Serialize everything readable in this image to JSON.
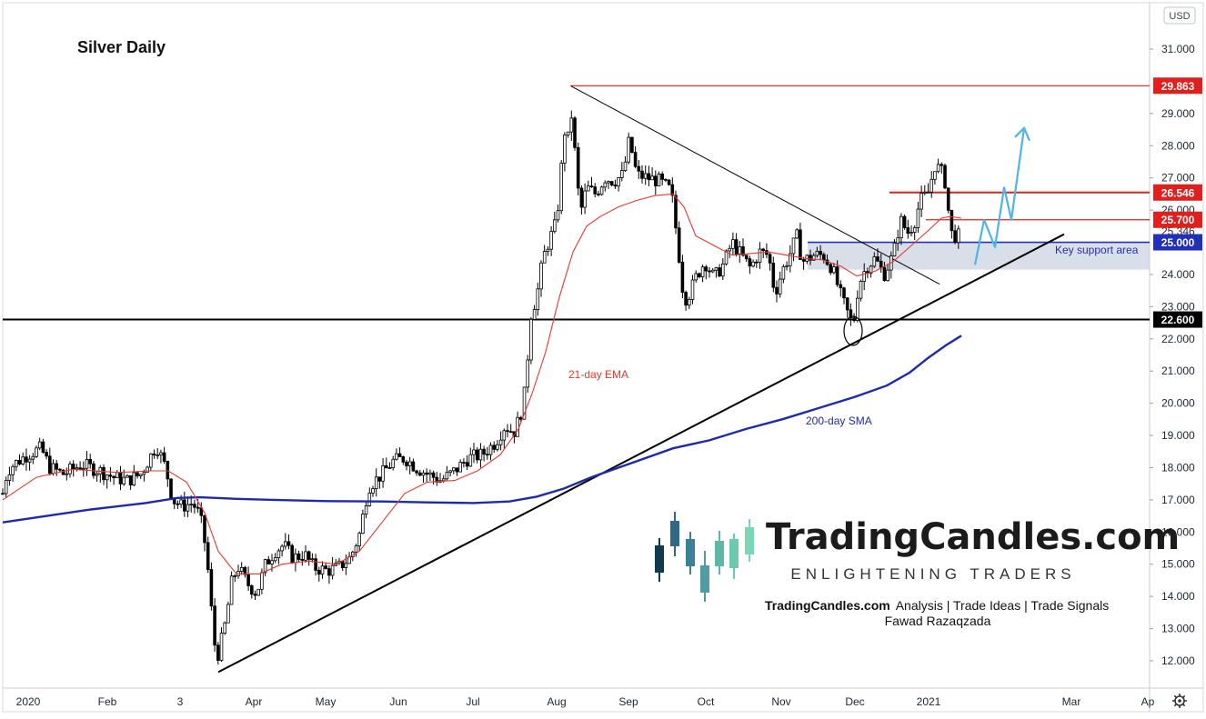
{
  "chart_data": {
    "type": "candlestick",
    "title": "Silver Daily",
    "currency": "USD",
    "y_ticks": [
      "31.000",
      "29.000",
      "28.000",
      "27.000",
      "26.000",
      "24.000",
      "23.000",
      "22.000",
      "21.000",
      "20.000",
      "19.000",
      "18.000",
      "17.000",
      "16.000",
      "15.000",
      "14.000",
      "13.000",
      "12.000"
    ],
    "ylim": [
      11.2,
      31.6
    ],
    "x_ticks": [
      {
        "label": "2020",
        "x": 31
      },
      {
        "label": "Feb",
        "x": 118
      },
      {
        "label": "3",
        "x": 198
      },
      {
        "label": "Apr",
        "x": 279
      },
      {
        "label": "May",
        "x": 358
      },
      {
        "label": "Jun",
        "x": 438
      },
      {
        "label": "Jul",
        "x": 520
      },
      {
        "label": "Aug",
        "x": 612
      },
      {
        "label": "Sep",
        "x": 691
      },
      {
        "label": "Oct",
        "x": 776
      },
      {
        "label": "Nov",
        "x": 859
      },
      {
        "label": "Dec",
        "x": 940
      },
      {
        "label": "2021",
        "x": 1021
      },
      {
        "label": "Mar",
        "x": 1178
      },
      {
        "label": "Ap",
        "x": 1262
      }
    ],
    "price_path": [
      [
        3,
        17.2
      ],
      [
        8,
        17.9
      ],
      [
        15,
        18.1
      ],
      [
        30,
        18.4
      ],
      [
        45,
        18.6
      ],
      [
        55,
        18.0
      ],
      [
        70,
        17.8
      ],
      [
        90,
        18.1
      ],
      [
        110,
        17.9
      ],
      [
        125,
        17.7
      ],
      [
        140,
        17.6
      ],
      [
        155,
        17.8
      ],
      [
        172,
        18.7
      ],
      [
        182,
        18.0
      ],
      [
        190,
        17.0
      ],
      [
        200,
        16.8
      ],
      [
        212,
        16.9
      ],
      [
        220,
        16.5
      ],
      [
        225,
        15.7
      ],
      [
        230,
        14.5
      ],
      [
        235,
        12.6
      ],
      [
        240,
        12.2
      ],
      [
        248,
        13.2
      ],
      [
        255,
        14.5
      ],
      [
        262,
        14.9
      ],
      [
        272,
        14.4
      ],
      [
        282,
        14.1
      ],
      [
        292,
        15.0
      ],
      [
        302,
        15.4
      ],
      [
        312,
        15.6
      ],
      [
        322,
        15.2
      ],
      [
        335,
        15.3
      ],
      [
        345,
        14.9
      ],
      [
        360,
        14.8
      ],
      [
        372,
        14.9
      ],
      [
        385,
        15.2
      ],
      [
        395,
        15.9
      ],
      [
        405,
        17.4
      ],
      [
        420,
        17.8
      ],
      [
        432,
        18.2
      ],
      [
        445,
        18.3
      ],
      [
        458,
        18.0
      ],
      [
        470,
        17.8
      ],
      [
        485,
        17.6
      ],
      [
        500,
        17.9
      ],
      [
        515,
        18.3
      ],
      [
        530,
        18.4
      ],
      [
        545,
        18.8
      ],
      [
        555,
        19.3
      ],
      [
        565,
        19.1
      ],
      [
        572,
        19.6
      ],
      [
        578,
        20.5
      ],
      [
        583,
        22.7
      ],
      [
        590,
        23.3
      ],
      [
        597,
        24.5
      ],
      [
        603,
        25.0
      ],
      [
        610,
        25.5
      ],
      [
        615,
        26.4
      ],
      [
        620,
        28.5
      ],
      [
        625,
        28.2
      ],
      [
        629,
        29.1
      ],
      [
        633,
        27.4
      ],
      [
        638,
        25.9
      ],
      [
        645,
        26.7
      ],
      [
        655,
        26.5
      ],
      [
        665,
        27.0
      ],
      [
        675,
        26.9
      ],
      [
        685,
        27.1
      ],
      [
        692,
        28.2
      ],
      [
        700,
        27.1
      ],
      [
        712,
        27.0
      ],
      [
        725,
        26.9
      ],
      [
        738,
        26.6
      ],
      [
        745,
        25.0
      ],
      [
        752,
        23.2
      ],
      [
        758,
        23.4
      ],
      [
        765,
        23.9
      ],
      [
        775,
        24.4
      ],
      [
        785,
        23.9
      ],
      [
        795,
        24.3
      ],
      [
        805,
        25.0
      ],
      [
        815,
        24.6
      ],
      [
        825,
        24.2
      ],
      [
        835,
        24.7
      ],
      [
        845,
        24.6
      ],
      [
        852,
        23.4
      ],
      [
        860,
        24.1
      ],
      [
        868,
        24.6
      ],
      [
        876,
        25.2
      ],
      [
        882,
        24.4
      ],
      [
        895,
        24.6
      ],
      [
        905,
        24.6
      ],
      [
        915,
        24.2
      ],
      [
        925,
        23.3
      ],
      [
        932,
        22.8
      ],
      [
        938,
        22.4
      ],
      [
        944,
        23.7
      ],
      [
        952,
        24.2
      ],
      [
        962,
        24.5
      ],
      [
        972,
        24.0
      ],
      [
        982,
        24.6
      ],
      [
        990,
        25.7
      ],
      [
        998,
        25.3
      ],
      [
        1005,
        25.6
      ],
      [
        1012,
        26.3
      ],
      [
        1020,
        26.5
      ],
      [
        1028,
        27.4
      ],
      [
        1035,
        27.2
      ],
      [
        1040,
        26.8
      ],
      [
        1045,
        25.3
      ],
      [
        1050,
        25.2
      ],
      [
        1057,
        25.2
      ]
    ],
    "ema_21": [
      [
        3,
        17.0
      ],
      [
        40,
        17.7
      ],
      [
        80,
        17.95
      ],
      [
        130,
        17.85
      ],
      [
        165,
        17.9
      ],
      [
        185,
        17.9
      ],
      [
        205,
        17.55
      ],
      [
        225,
        16.6
      ],
      [
        240,
        15.4
      ],
      [
        260,
        14.7
      ],
      [
        285,
        14.7
      ],
      [
        310,
        15.0
      ],
      [
        340,
        15.1
      ],
      [
        370,
        15.0
      ],
      [
        395,
        15.4
      ],
      [
        420,
        16.3
      ],
      [
        445,
        17.2
      ],
      [
        470,
        17.55
      ],
      [
        500,
        17.6
      ],
      [
        525,
        17.9
      ],
      [
        550,
        18.4
      ],
      [
        570,
        19.2
      ],
      [
        585,
        20.3
      ],
      [
        600,
        21.6
      ],
      [
        615,
        23.3
      ],
      [
        630,
        24.7
      ],
      [
        645,
        25.5
      ],
      [
        660,
        25.8
      ],
      [
        680,
        26.1
      ],
      [
        700,
        26.3
      ],
      [
        720,
        26.45
      ],
      [
        740,
        26.5
      ],
      [
        752,
        26.1
      ],
      [
        765,
        25.2
      ],
      [
        785,
        24.9
      ],
      [
        805,
        24.6
      ],
      [
        825,
        24.65
      ],
      [
        845,
        24.7
      ],
      [
        865,
        24.6
      ],
      [
        885,
        24.5
      ],
      [
        905,
        24.45
      ],
      [
        925,
        24.25
      ],
      [
        942,
        23.95
      ],
      [
        962,
        24.1
      ],
      [
        982,
        24.4
      ],
      [
        1002,
        24.9
      ],
      [
        1022,
        25.4
      ],
      [
        1035,
        25.75
      ],
      [
        1045,
        25.8
      ],
      [
        1057,
        25.75
      ]
    ],
    "sma_200": [
      [
        3,
        16.3
      ],
      [
        100,
        16.7
      ],
      [
        160,
        16.9
      ],
      [
        195,
        17.06
      ],
      [
        220,
        17.08
      ],
      [
        260,
        17.03
      ],
      [
        300,
        17.0
      ],
      [
        360,
        16.96
      ],
      [
        420,
        16.95
      ],
      [
        470,
        16.92
      ],
      [
        520,
        16.9
      ],
      [
        560,
        16.95
      ],
      [
        590,
        17.1
      ],
      [
        620,
        17.35
      ],
      [
        650,
        17.7
      ],
      [
        680,
        18.0
      ],
      [
        710,
        18.3
      ],
      [
        740,
        18.6
      ],
      [
        780,
        18.85
      ],
      [
        820,
        19.2
      ],
      [
        860,
        19.5
      ],
      [
        900,
        19.85
      ],
      [
        940,
        20.2
      ],
      [
        975,
        20.55
      ],
      [
        1000,
        20.95
      ],
      [
        1020,
        21.4
      ],
      [
        1040,
        21.8
      ],
      [
        1057,
        22.1
      ]
    ],
    "levels": [
      {
        "label": "29.863",
        "value": 29.863,
        "color": "#e0201e"
      },
      {
        "label": "26.546",
        "value": 26.546,
        "color": "#e0201e"
      },
      {
        "label": "25.700",
        "value": 25.7,
        "color": "#e0201e"
      },
      {
        "label": "25.000",
        "value": 25.0,
        "color": "#2130b8"
      },
      {
        "label": "22.600",
        "value": 22.6,
        "color": "#000000"
      }
    ],
    "last_price_label": "25.346",
    "annotations": {
      "ema_label": "21-day EMA",
      "sma_label": "200-day SMA",
      "support_label": "Key support area"
    },
    "colors": {
      "ema": "#e5392f",
      "sma": "#1f2aa8",
      "projection": "#4fb3ec",
      "support_zone": "#c5cedb",
      "trendline": "#000000"
    }
  },
  "brand": {
    "name": "TradingCandles.com",
    "tagline": "ENLIGHTENING TRADERS",
    "line1_bold": "TradingCandles.com",
    "line1_rest": "Analysis | Trade Ideas | Trade Signals",
    "author": "Fawad Razaqzada"
  }
}
